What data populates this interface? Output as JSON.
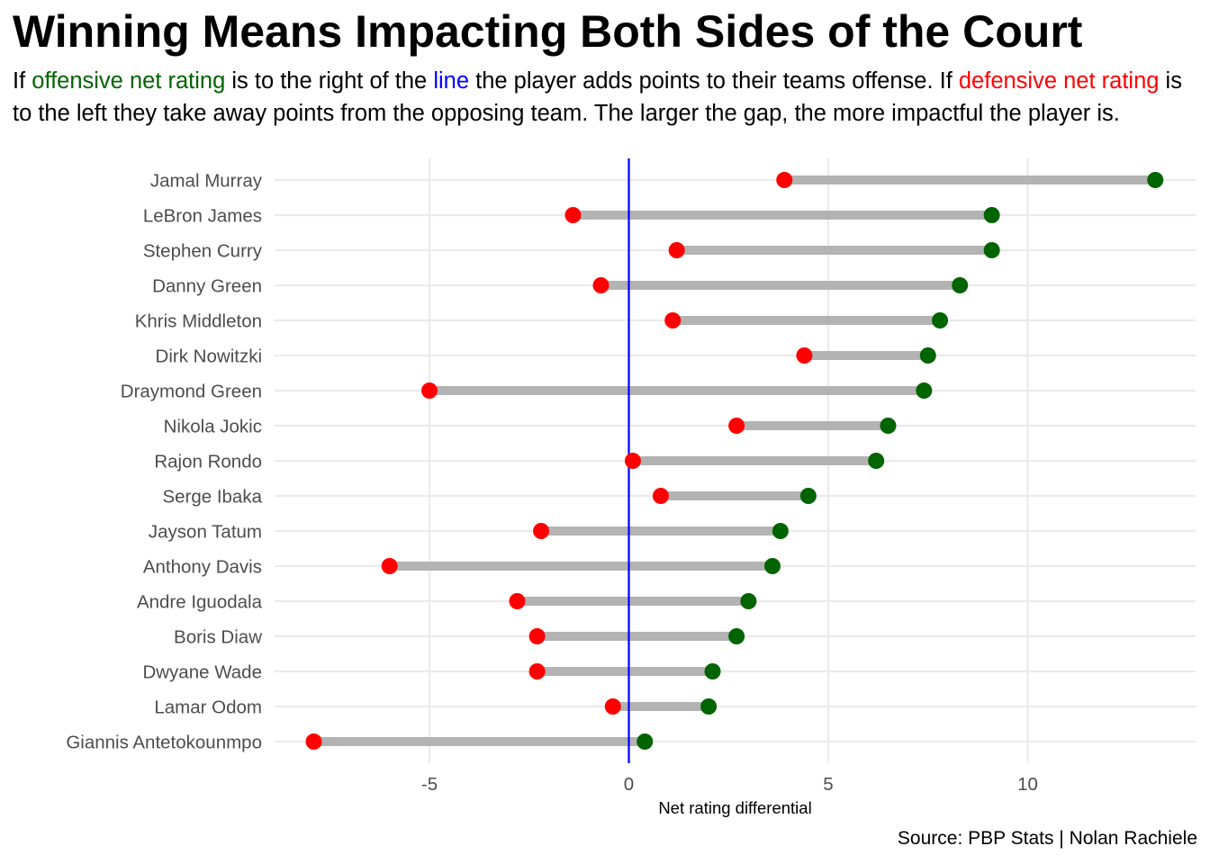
{
  "title": "Winning Means Impacting Both Sides of the Court",
  "subtitle": {
    "t1": "If ",
    "offensive": "offensive net rating",
    "t2": " is to the right of the ",
    "line": "line",
    "t3": " the player adds points to their teams offense. If ",
    "defensive": "defensive net rating",
    "t4": " is to the left they take away points from the opposing team. The larger the gap, the more impactful the player is."
  },
  "caption": "Source: PBP Stats | Nolan Rachiele",
  "colors": {
    "offensive": "#006400",
    "defensive": "#ff0000",
    "zero_line": "#0000ff",
    "segment": "#b3b3b3",
    "grid": "#ebebeb"
  },
  "chart_data": {
    "type": "dumbbell",
    "xlabel": "Net rating differential",
    "xlim": [
      -9.0,
      14.0
    ],
    "x_ticks": [
      -5,
      0,
      5,
      10
    ],
    "reference_line": 0,
    "grid": true,
    "series": [
      {
        "name": "offensive net rating",
        "key": "offensive"
      },
      {
        "name": "defensive net rating",
        "key": "defensive"
      }
    ],
    "players": [
      {
        "name": "Jamal Murray",
        "offensive": 13.2,
        "defensive": 3.9
      },
      {
        "name": "LeBron James",
        "offensive": 9.1,
        "defensive": -1.4
      },
      {
        "name": "Stephen Curry",
        "offensive": 9.1,
        "defensive": 1.2
      },
      {
        "name": "Danny Green",
        "offensive": 8.3,
        "defensive": -0.7
      },
      {
        "name": "Khris Middleton",
        "offensive": 7.8,
        "defensive": 1.1
      },
      {
        "name": "Dirk Nowitzki",
        "offensive": 7.5,
        "defensive": 4.4
      },
      {
        "name": "Draymond Green",
        "offensive": 7.4,
        "defensive": -5.0
      },
      {
        "name": "Nikola Jokic",
        "offensive": 6.5,
        "defensive": 2.7
      },
      {
        "name": "Rajon Rondo",
        "offensive": 6.2,
        "defensive": 0.1
      },
      {
        "name": "Serge Ibaka",
        "offensive": 4.5,
        "defensive": 0.8
      },
      {
        "name": "Jayson Tatum",
        "offensive": 3.8,
        "defensive": -2.2
      },
      {
        "name": "Anthony Davis",
        "offensive": 3.6,
        "defensive": -6.0
      },
      {
        "name": "Andre Iguodala",
        "offensive": 3.0,
        "defensive": -2.8
      },
      {
        "name": "Boris Diaw",
        "offensive": 2.7,
        "defensive": -2.3
      },
      {
        "name": "Dwyane Wade",
        "offensive": 2.1,
        "defensive": -2.3
      },
      {
        "name": "Lamar Odom",
        "offensive": 2.0,
        "defensive": -0.4
      },
      {
        "name": "Giannis Antetokounmpo",
        "offensive": 0.4,
        "defensive": -7.9
      }
    ]
  }
}
